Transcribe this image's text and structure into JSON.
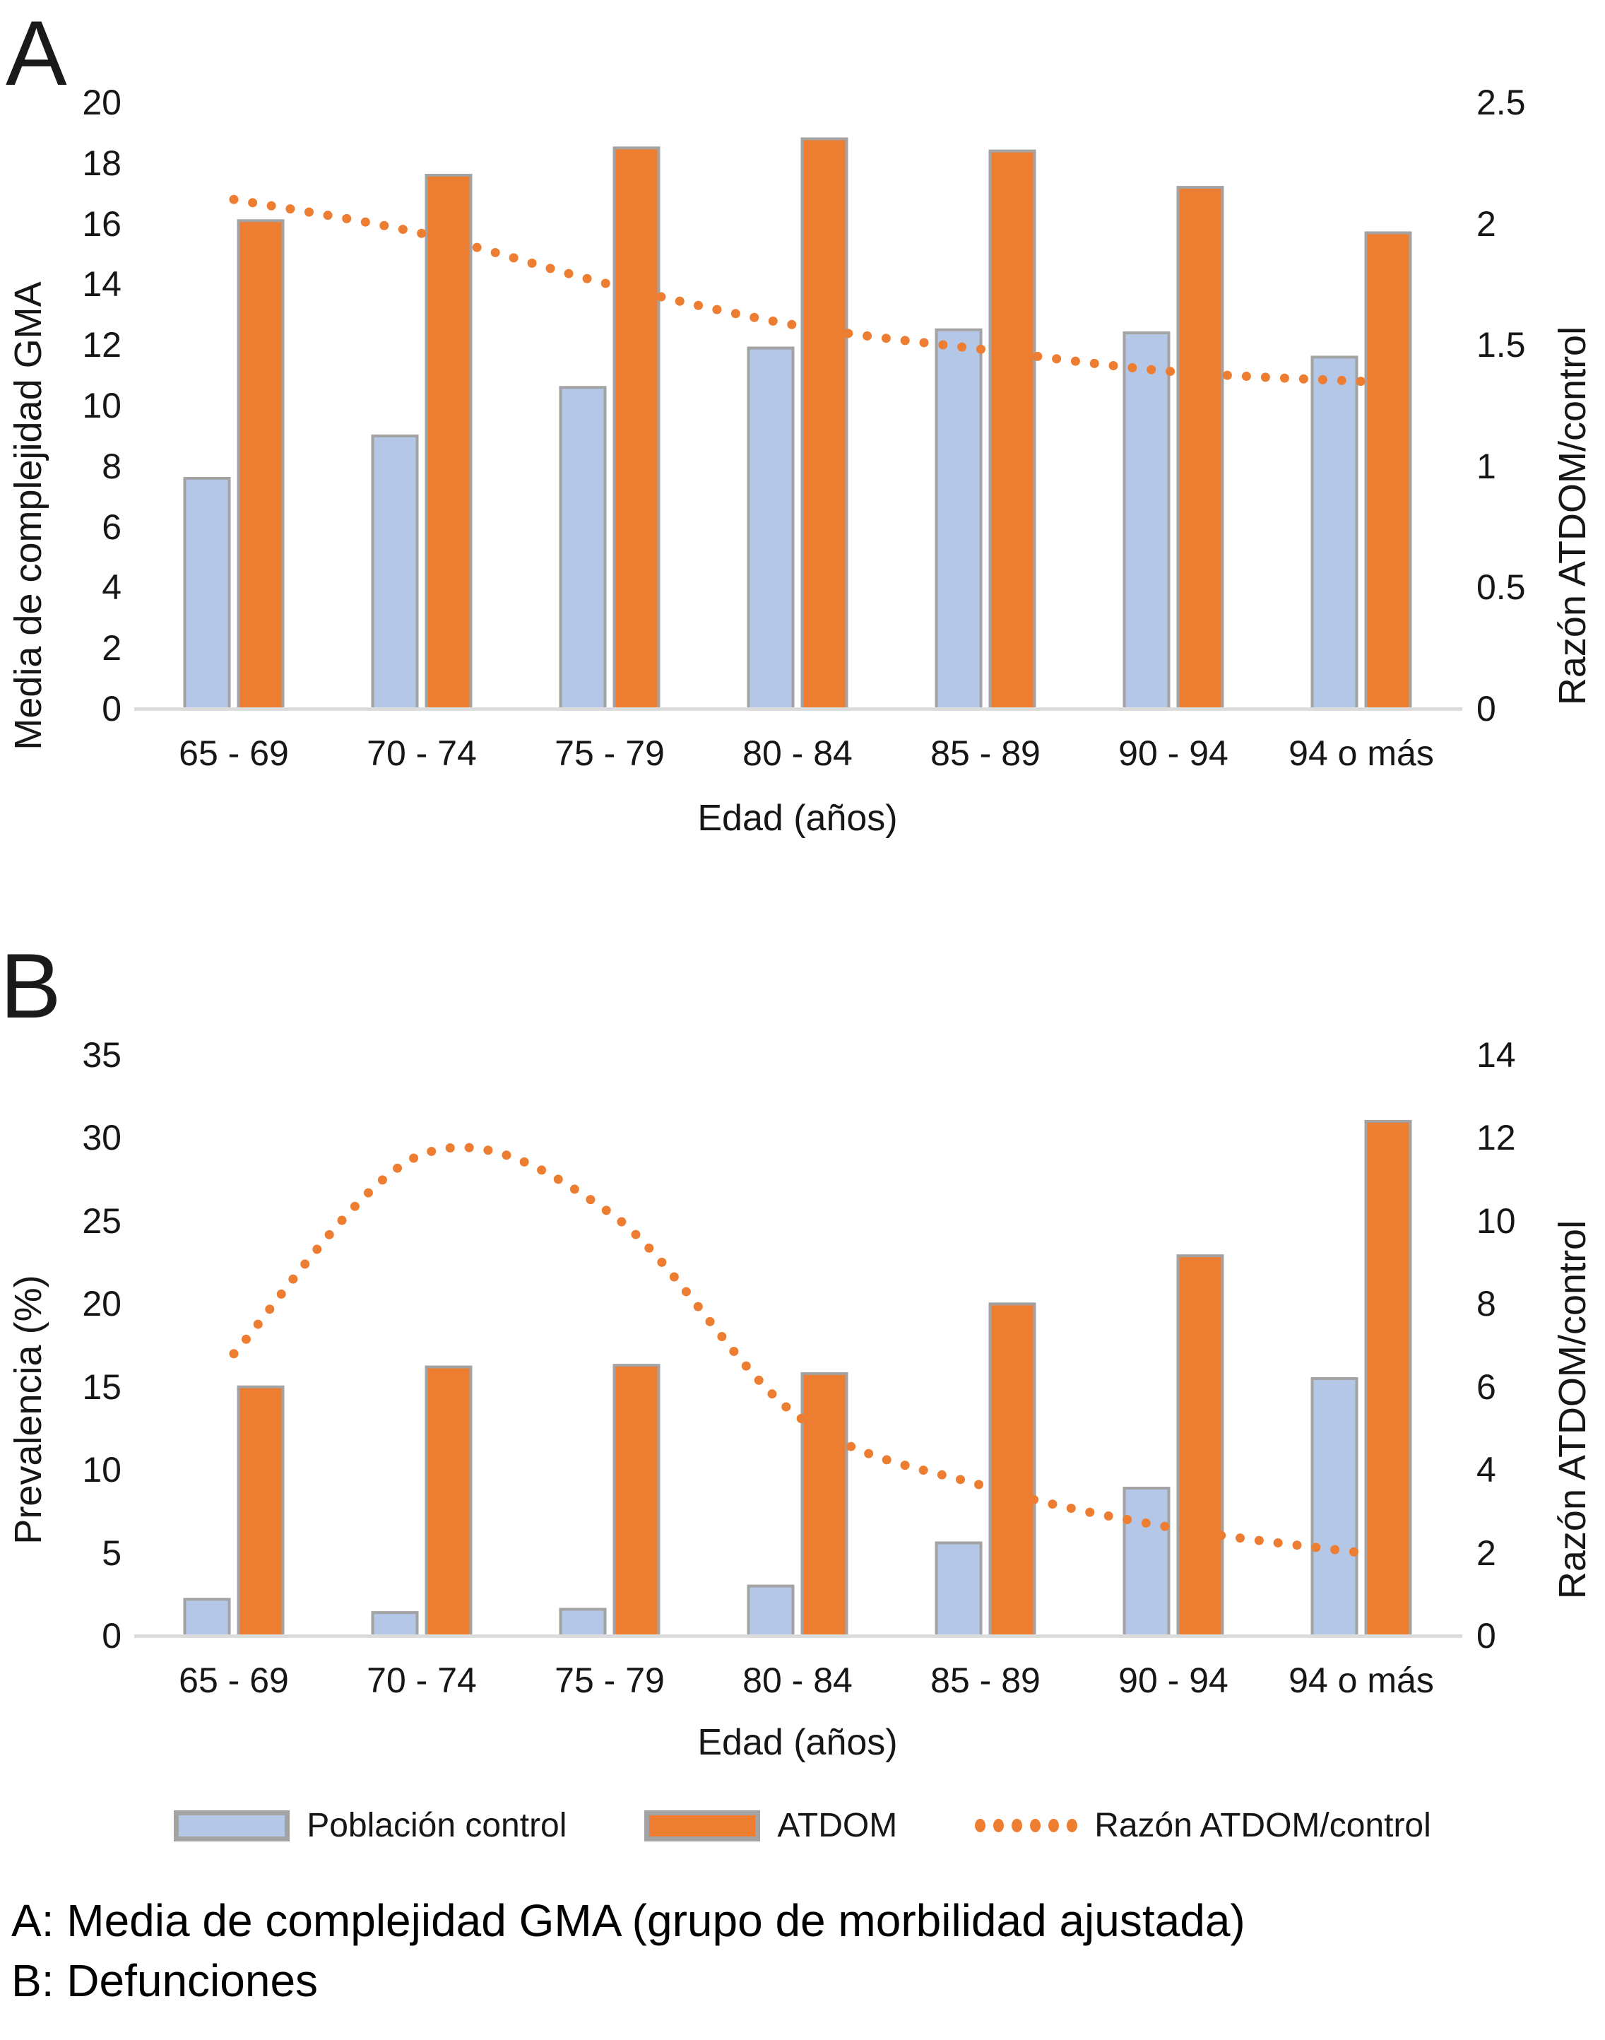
{
  "chart_data": [
    {
      "panel": "A",
      "type": "bar+line",
      "title": "Media de complejidad GMA (grupo de morbilidad ajustada)",
      "categories": [
        "65 - 69",
        "70 - 74",
        "75 - 79",
        "80 - 84",
        "85 - 89",
        "90 - 94",
        "94 o más"
      ],
      "x_title": "Edad (años)",
      "y_left": {
        "title": "Media de complejidad GMA",
        "min": 0,
        "max": 20,
        "ticks": [
          0,
          2,
          4,
          6,
          8,
          10,
          12,
          14,
          16,
          18,
          20
        ]
      },
      "y_right": {
        "title": "Razón ATDOM/control",
        "min": 0,
        "max": 2.5,
        "ticks": [
          "0",
          "0.5",
          "1",
          "1.5",
          "2",
          "2.5"
        ]
      },
      "grid": false,
      "series": [
        {
          "name": "Población control",
          "type": "bar",
          "axis": "left",
          "values": [
            7.6,
            9.0,
            10.6,
            11.9,
            12.5,
            12.4,
            11.6
          ]
        },
        {
          "name": "ATDOM",
          "type": "bar",
          "axis": "left",
          "values": [
            16.1,
            17.6,
            18.5,
            18.8,
            18.4,
            17.2,
            15.7
          ]
        },
        {
          "name": "Razón ATDOM/control",
          "type": "dotted-line",
          "axis": "right",
          "values": [
            2.1,
            1.96,
            1.75,
            1.58,
            1.48,
            1.39,
            1.35
          ]
        }
      ]
    },
    {
      "panel": "B",
      "type": "bar+line",
      "title": "Defunciones",
      "categories": [
        "65 - 69",
        "70 - 74",
        "75 - 79",
        "80 - 84",
        "85 - 89",
        "90 - 94",
        "94 o más"
      ],
      "x_title": "Edad (años)",
      "y_left": {
        "title": "Prevalencia (%)",
        "min": 0,
        "max": 35,
        "ticks": [
          0,
          5,
          10,
          15,
          20,
          25,
          30,
          35
        ]
      },
      "y_right": {
        "title": "Razón ATDOM/control",
        "min": 0,
        "max": 14,
        "ticks": [
          0,
          2,
          4,
          6,
          8,
          10,
          12,
          14
        ]
      },
      "grid": false,
      "series": [
        {
          "name": "Población control",
          "type": "bar",
          "axis": "left",
          "values": [
            2.2,
            1.4,
            1.6,
            3.0,
            5.6,
            8.9,
            15.5
          ]
        },
        {
          "name": "ATDOM",
          "type": "bar",
          "axis": "left",
          "values": [
            15.0,
            16.2,
            16.3,
            15.8,
            20.0,
            22.9,
            31.0
          ]
        },
        {
          "name": "Razón ATDOM/control",
          "type": "dotted-line",
          "axis": "right",
          "values": [
            6.8,
            11.6,
            10.2,
            5.3,
            3.6,
            2.6,
            2.0
          ]
        }
      ]
    }
  ],
  "legend": {
    "items": [
      {
        "label": "Población control",
        "swatch": "bar-blue"
      },
      {
        "label": "ATDOM",
        "swatch": "bar-orange"
      },
      {
        "label": "Razón ATDOM/control",
        "swatch": "dots-orange"
      }
    ],
    "position": "bottom"
  },
  "caption": {
    "line1": "A: Media de complejidad GMA (grupo de morbilidad ajustada)",
    "line2": "B: Defunciones"
  },
  "colors": {
    "control_fill": "#B4C7E7",
    "atdom_fill": "#ED7D31",
    "ratio_dots": "#ED7D31",
    "bar_border": "#A3A3A3",
    "axis_line": "#DCDCDC",
    "text": "#161616"
  }
}
